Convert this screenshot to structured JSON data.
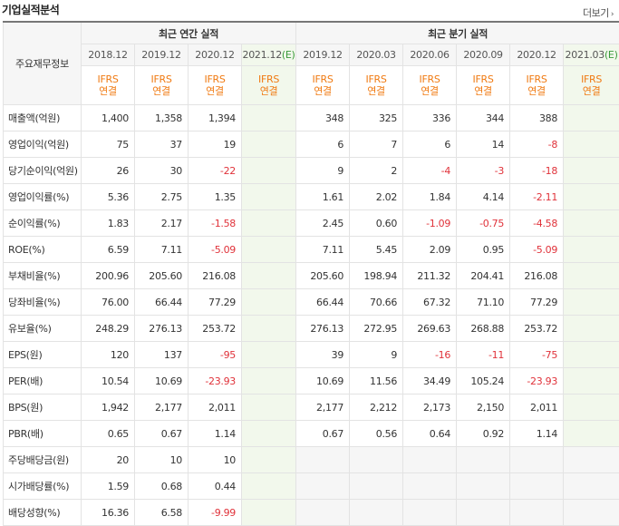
{
  "header": {
    "title": "기업실적분석",
    "more": "더보기",
    "more_icon": "chevron-right-icon"
  },
  "table": {
    "corner_label": "주요재무정보",
    "group_annual": "최근 연간 실적",
    "group_quarter": "최근 분기 실적",
    "periods_annual": [
      "2018.12",
      "2019.12",
      "2020.12",
      "2021.12"
    ],
    "annual_estimate_mark": "(E)",
    "periods_quarter": [
      "2019.12",
      "2020.03",
      "2020.06",
      "2020.09",
      "2020.12",
      "2021.03"
    ],
    "quarter_estimate_mark": "(E)",
    "standard_line1": "IFRS",
    "standard_line2": "연결",
    "rows": [
      {
        "label": "매출액(억원)",
        "a": [
          "1,400",
          "1,358",
          "1,394",
          ""
        ],
        "q": [
          "348",
          "325",
          "336",
          "344",
          "388",
          ""
        ]
      },
      {
        "label": "영업이익(억원)",
        "a": [
          "75",
          "37",
          "19",
          ""
        ],
        "q": [
          "6",
          "7",
          "6",
          "14",
          "-8",
          ""
        ]
      },
      {
        "label": "당기순이익(억원)",
        "a": [
          "26",
          "30",
          "-22",
          ""
        ],
        "q": [
          "9",
          "2",
          "-4",
          "-3",
          "-18",
          ""
        ]
      },
      {
        "label": "영업이익률(%)",
        "a": [
          "5.36",
          "2.75",
          "1.35",
          ""
        ],
        "q": [
          "1.61",
          "2.02",
          "1.84",
          "4.14",
          "-2.11",
          ""
        ]
      },
      {
        "label": "순이익률(%)",
        "a": [
          "1.83",
          "2.17",
          "-1.58",
          ""
        ],
        "q": [
          "2.45",
          "0.60",
          "-1.09",
          "-0.75",
          "-4.58",
          ""
        ]
      },
      {
        "label": "ROE(%)",
        "a": [
          "6.59",
          "7.11",
          "-5.09",
          ""
        ],
        "q": [
          "7.11",
          "5.45",
          "2.09",
          "0.95",
          "-5.09",
          ""
        ]
      },
      {
        "label": "부채비율(%)",
        "a": [
          "200.96",
          "205.60",
          "216.08",
          ""
        ],
        "q": [
          "205.60",
          "198.94",
          "211.32",
          "204.41",
          "216.08",
          ""
        ]
      },
      {
        "label": "당좌비율(%)",
        "a": [
          "76.00",
          "66.44",
          "77.29",
          ""
        ],
        "q": [
          "66.44",
          "70.66",
          "67.32",
          "71.10",
          "77.29",
          ""
        ]
      },
      {
        "label": "유보율(%)",
        "a": [
          "248.29",
          "276.13",
          "253.72",
          ""
        ],
        "q": [
          "276.13",
          "272.95",
          "269.63",
          "268.88",
          "253.72",
          ""
        ]
      },
      {
        "label": "EPS(원)",
        "a": [
          "120",
          "137",
          "-95",
          ""
        ],
        "q": [
          "39",
          "9",
          "-16",
          "-11",
          "-75",
          ""
        ]
      },
      {
        "label": "PER(배)",
        "a": [
          "10.54",
          "10.69",
          "-23.93",
          ""
        ],
        "q": [
          "10.69",
          "11.56",
          "34.49",
          "105.24",
          "-23.93",
          ""
        ]
      },
      {
        "label": "BPS(원)",
        "a": [
          "1,942",
          "2,177",
          "2,011",
          ""
        ],
        "q": [
          "2,177",
          "2,212",
          "2,173",
          "2,150",
          "2,011",
          ""
        ]
      },
      {
        "label": "PBR(배)",
        "a": [
          "0.65",
          "0.67",
          "1.14",
          ""
        ],
        "q": [
          "0.67",
          "0.56",
          "0.64",
          "0.92",
          "1.14",
          ""
        ]
      },
      {
        "label": "주당배당금(원)",
        "a": [
          "20",
          "10",
          "10",
          ""
        ],
        "q": [
          "",
          "",
          "",
          "",
          "",
          ""
        ]
      },
      {
        "label": "시가배당률(%)",
        "a": [
          "1.59",
          "0.68",
          "0.44",
          ""
        ],
        "q": [
          "",
          "",
          "",
          "",
          "",
          ""
        ]
      },
      {
        "label": "배당성향(%)",
        "a": [
          "16.36",
          "6.58",
          "-9.99",
          ""
        ],
        "q": [
          "",
          "",
          "",
          "",
          "",
          ""
        ]
      }
    ],
    "colors": {
      "negative": "#e0323a",
      "ifrs": "#f07a12",
      "estimate_bg": "#f2f8ec",
      "estimate_mark": "#3b9a3b"
    }
  }
}
